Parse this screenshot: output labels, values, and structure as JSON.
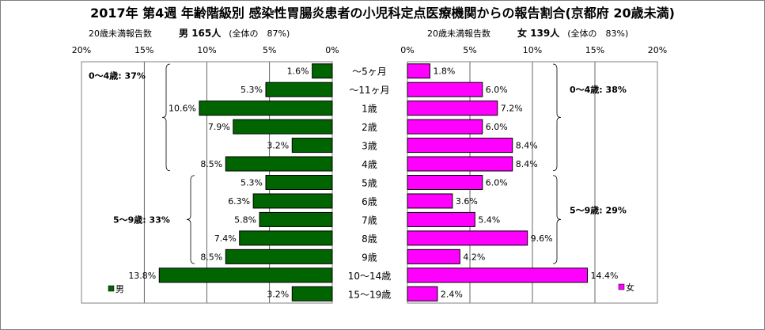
{
  "title": "2017年 第4週 年齢階級別 感染性胃腸炎患者の小児科定点医療機関からの報告割合(京都府 20歳未満)",
  "male": {
    "axis_label": "20歳未満報告数",
    "sex_label": "男",
    "count": "165人",
    "share": "(全体の　87%)",
    "legend": "男",
    "color": "#006400"
  },
  "female": {
    "axis_label": "20歳未満報告数",
    "sex_label": "女",
    "count": "139人",
    "share": "(全体の　83%)",
    "legend": "女",
    "color": "#ff00ff"
  },
  "brackets": {
    "male_0_4": "0〜4歳: 37%",
    "male_5_9": "5〜9歳: 33%",
    "female_0_4": "0〜4歳: 38%",
    "female_5_9": "5〜9歳: 29%"
  },
  "chart_data": {
    "type": "bar",
    "orientation": "horizontal",
    "layout": "population-pyramid",
    "categories": [
      "〜5ヶ月",
      "〜11ヶ月",
      "1歳",
      "2歳",
      "3歳",
      "4歳",
      "5歳",
      "6歳",
      "7歳",
      "8歳",
      "9歳",
      "10〜14歳",
      "15〜19歳"
    ],
    "series": [
      {
        "name": "男",
        "values": [
          1.6,
          5.3,
          10.6,
          7.9,
          3.2,
          8.5,
          5.3,
          6.3,
          5.8,
          7.4,
          8.5,
          13.8,
          3.2
        ]
      },
      {
        "name": "女",
        "values": [
          1.8,
          6.0,
          7.2,
          6.0,
          8.4,
          8.4,
          6.0,
          3.6,
          5.4,
          9.6,
          4.2,
          14.4,
          2.4
        ]
      }
    ],
    "value_labels": {
      "male": [
        "1.6%",
        "5.3%",
        "10.6%",
        "7.9%",
        "3.2%",
        "8.5%",
        "5.3%",
        "6.3%",
        "5.8%",
        "7.4%",
        "8.5%",
        "13.8%",
        "3.2%"
      ],
      "female": [
        "1.8%",
        "6.0%",
        "7.2%",
        "6.0%",
        "8.4%",
        "8.4%",
        "6.0%",
        "3.6%",
        "5.4%",
        "9.6%",
        "4.2%",
        "14.4%",
        "2.4%"
      ]
    },
    "xlim": [
      0,
      20
    ],
    "ticks": [
      0,
      5,
      10,
      15,
      20
    ],
    "male_tick_labels": [
      "0%",
      "5%",
      "10%",
      "15%",
      "20%"
    ],
    "female_tick_labels": [
      "0%",
      "5%",
      "10%",
      "15%",
      "20%"
    ],
    "grid": true,
    "legend_position": "bottom"
  }
}
